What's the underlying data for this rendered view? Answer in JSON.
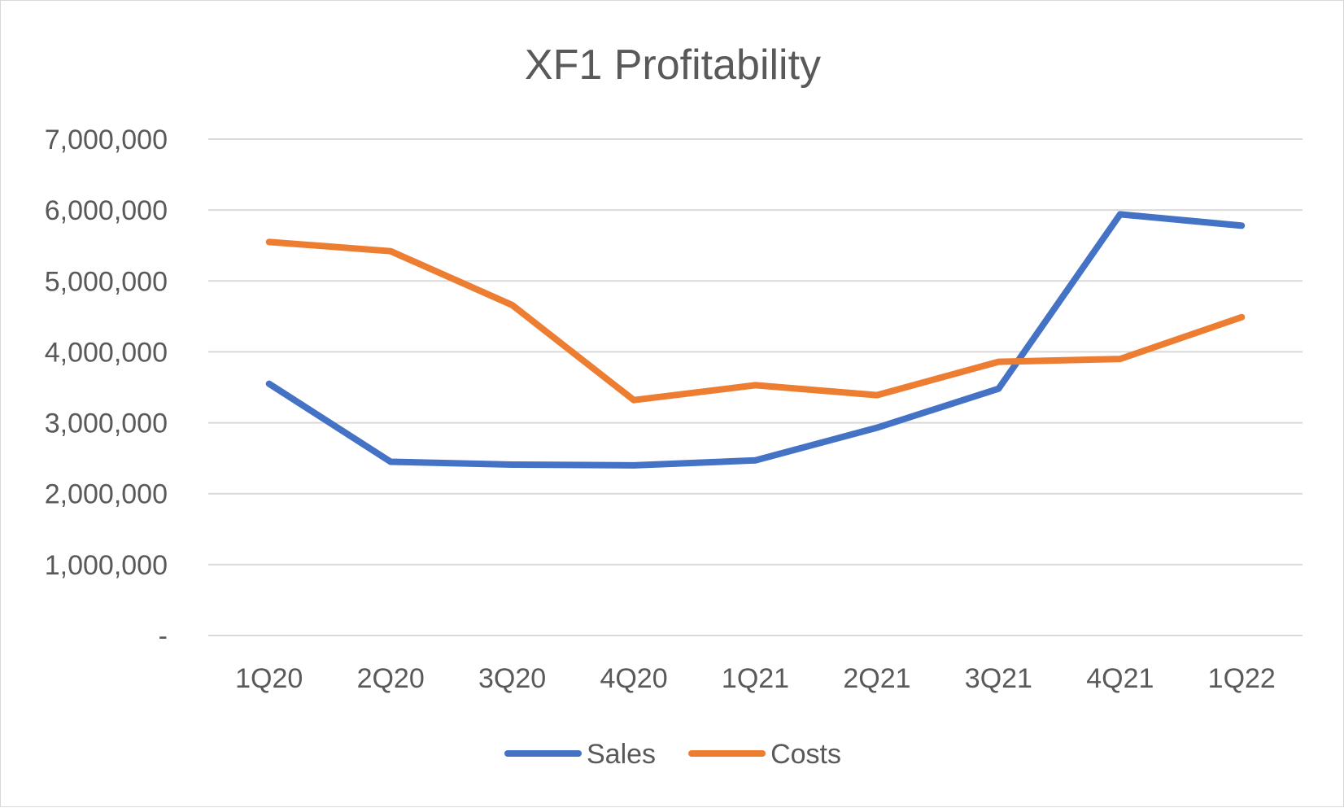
{
  "chart_data": {
    "type": "line",
    "title": "XF1 Profitability",
    "xlabel": "",
    "ylabel": "",
    "categories": [
      "1Q20",
      "2Q20",
      "3Q20",
      "4Q20",
      "1Q21",
      "2Q21",
      "3Q21",
      "4Q21",
      "1Q22"
    ],
    "ylim": [
      0,
      7000000
    ],
    "yticks": [
      0,
      1000000,
      2000000,
      3000000,
      4000000,
      5000000,
      6000000,
      7000000
    ],
    "ytick_labels": [
      "-",
      "1,000,000",
      "2,000,000",
      "3,000,000",
      "4,000,000",
      "5,000,000",
      "6,000,000",
      "7,000,000"
    ],
    "grid": true,
    "legend_position": "bottom",
    "series": [
      {
        "name": "Sales",
        "color": "#4472C4",
        "values": [
          3550000,
          2450000,
          2410000,
          2400000,
          2470000,
          2930000,
          3480000,
          5940000,
          5780000
        ]
      },
      {
        "name": "Costs",
        "color": "#ED7D31",
        "values": [
          5550000,
          5420000,
          4660000,
          3320000,
          3530000,
          3390000,
          3860000,
          3900000,
          4490000
        ]
      }
    ]
  }
}
